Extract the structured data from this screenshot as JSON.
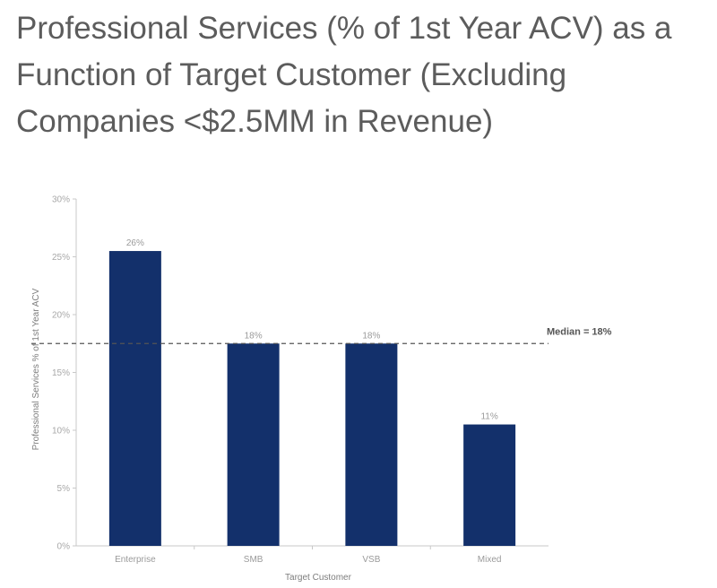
{
  "chart_data": {
    "type": "bar",
    "title_lines": [
      "Professional Services (% of 1st Year ACV) as a",
      "Function of Target Customer (Excluding",
      "Companies <$2.5MM in Revenue)"
    ],
    "categories": [
      "Enterprise",
      "SMB",
      "VSB",
      "Mixed"
    ],
    "values": [
      25.5,
      17.5,
      17.5,
      10.5
    ],
    "data_labels": [
      "26%",
      "18%",
      "18%",
      "11%"
    ],
    "xlabel": "Target Customer",
    "ylabel": "Professional Services % of 1st Year ACV",
    "ylim": [
      0,
      30
    ],
    "yticks": [
      0,
      5,
      10,
      15,
      20,
      25,
      30
    ],
    "ytick_labels": [
      "0%",
      "5%",
      "10%",
      "15%",
      "20%",
      "25%",
      "30%"
    ],
    "reference_line": {
      "value": 17.5,
      "label": "Median = 18%",
      "style": "dashed"
    },
    "bar_color": "#13306b",
    "grid": false
  }
}
